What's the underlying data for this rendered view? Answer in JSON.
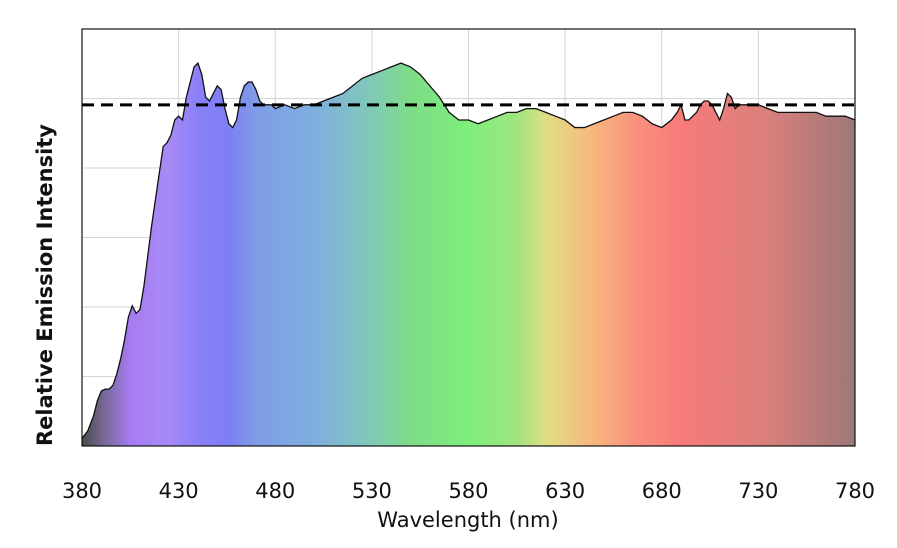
{
  "chart_data": {
    "type": "area",
    "title": "",
    "xlabel": "Wavelength (nm)",
    "ylabel": "Relative Emission Intensity",
    "xlim": [
      380,
      780
    ],
    "ylim": [
      0,
      1.1
    ],
    "grid": true,
    "x_ticks": [
      380,
      430,
      480,
      530,
      580,
      630,
      680,
      730,
      780
    ],
    "reference_line": {
      "style": "dashed",
      "color": "#000000",
      "y": 0.9
    },
    "series": [
      {
        "x": [
          380,
          383,
          386,
          388,
          390,
          392,
          394,
          396,
          398,
          400,
          402,
          404,
          406,
          408,
          410,
          412,
          414,
          416,
          418,
          420,
          422,
          424,
          426,
          428,
          430,
          432,
          434,
          436,
          438,
          440,
          442,
          444,
          446,
          448,
          450,
          452,
          454,
          456,
          458,
          460,
          462,
          464,
          466,
          468,
          470,
          472,
          474,
          476,
          478,
          480,
          485,
          490,
          495,
          500,
          505,
          510,
          515,
          520,
          525,
          530,
          535,
          540,
          545,
          550,
          555,
          560,
          565,
          570,
          575,
          580,
          585,
          590,
          595,
          600,
          605,
          610,
          615,
          620,
          625,
          630,
          635,
          640,
          645,
          650,
          655,
          660,
          665,
          670,
          675,
          680,
          685,
          688,
          690,
          692,
          694,
          696,
          698,
          700,
          702,
          704,
          706,
          708,
          710,
          712,
          714,
          716,
          718,
          720,
          725,
          730,
          735,
          740,
          745,
          750,
          755,
          760,
          765,
          770,
          775,
          780
        ],
        "values": [
          0.02,
          0.04,
          0.08,
          0.12,
          0.145,
          0.15,
          0.15,
          0.16,
          0.19,
          0.23,
          0.28,
          0.34,
          0.37,
          0.35,
          0.36,
          0.42,
          0.5,
          0.58,
          0.65,
          0.72,
          0.79,
          0.8,
          0.82,
          0.86,
          0.87,
          0.86,
          0.92,
          0.96,
          1.0,
          1.01,
          0.98,
          0.92,
          0.91,
          0.93,
          0.95,
          0.94,
          0.89,
          0.85,
          0.84,
          0.86,
          0.92,
          0.95,
          0.96,
          0.96,
          0.94,
          0.91,
          0.9,
          0.9,
          0.9,
          0.89,
          0.9,
          0.89,
          0.9,
          0.9,
          0.91,
          0.92,
          0.93,
          0.95,
          0.97,
          0.98,
          0.99,
          1.0,
          1.01,
          1.0,
          0.98,
          0.95,
          0.92,
          0.88,
          0.86,
          0.86,
          0.85,
          0.86,
          0.87,
          0.88,
          0.88,
          0.89,
          0.89,
          0.88,
          0.87,
          0.86,
          0.84,
          0.84,
          0.85,
          0.86,
          0.87,
          0.88,
          0.88,
          0.87,
          0.85,
          0.84,
          0.86,
          0.88,
          0.9,
          0.86,
          0.86,
          0.87,
          0.88,
          0.9,
          0.91,
          0.91,
          0.9,
          0.88,
          0.86,
          0.89,
          0.93,
          0.92,
          0.89,
          0.9,
          0.9,
          0.9,
          0.89,
          0.88,
          0.88,
          0.88,
          0.88,
          0.88,
          0.87,
          0.87,
          0.87,
          0.86
        ]
      }
    ],
    "fill_spectrum": [
      {
        "nm": 380,
        "color": "#4a4a4a"
      },
      {
        "nm": 392,
        "color": "#7a6a9a"
      },
      {
        "nm": 405,
        "color": "#a77cf2"
      },
      {
        "nm": 425,
        "color": "#a78af6"
      },
      {
        "nm": 440,
        "color": "#8a80f8"
      },
      {
        "nm": 455,
        "color": "#7d7ef5"
      },
      {
        "nm": 470,
        "color": "#7f9ce6"
      },
      {
        "nm": 500,
        "color": "#7faee0"
      },
      {
        "nm": 530,
        "color": "#80c9b8"
      },
      {
        "nm": 550,
        "color": "#7edc86"
      },
      {
        "nm": 580,
        "color": "#7eee7c"
      },
      {
        "nm": 605,
        "color": "#9fe480"
      },
      {
        "nm": 620,
        "color": "#e0de84"
      },
      {
        "nm": 645,
        "color": "#f7b67e"
      },
      {
        "nm": 668,
        "color": "#f88f7e"
      },
      {
        "nm": 690,
        "color": "#f87a7a"
      },
      {
        "nm": 735,
        "color": "#d9807c"
      },
      {
        "nm": 780,
        "color": "#9c7877"
      }
    ]
  }
}
